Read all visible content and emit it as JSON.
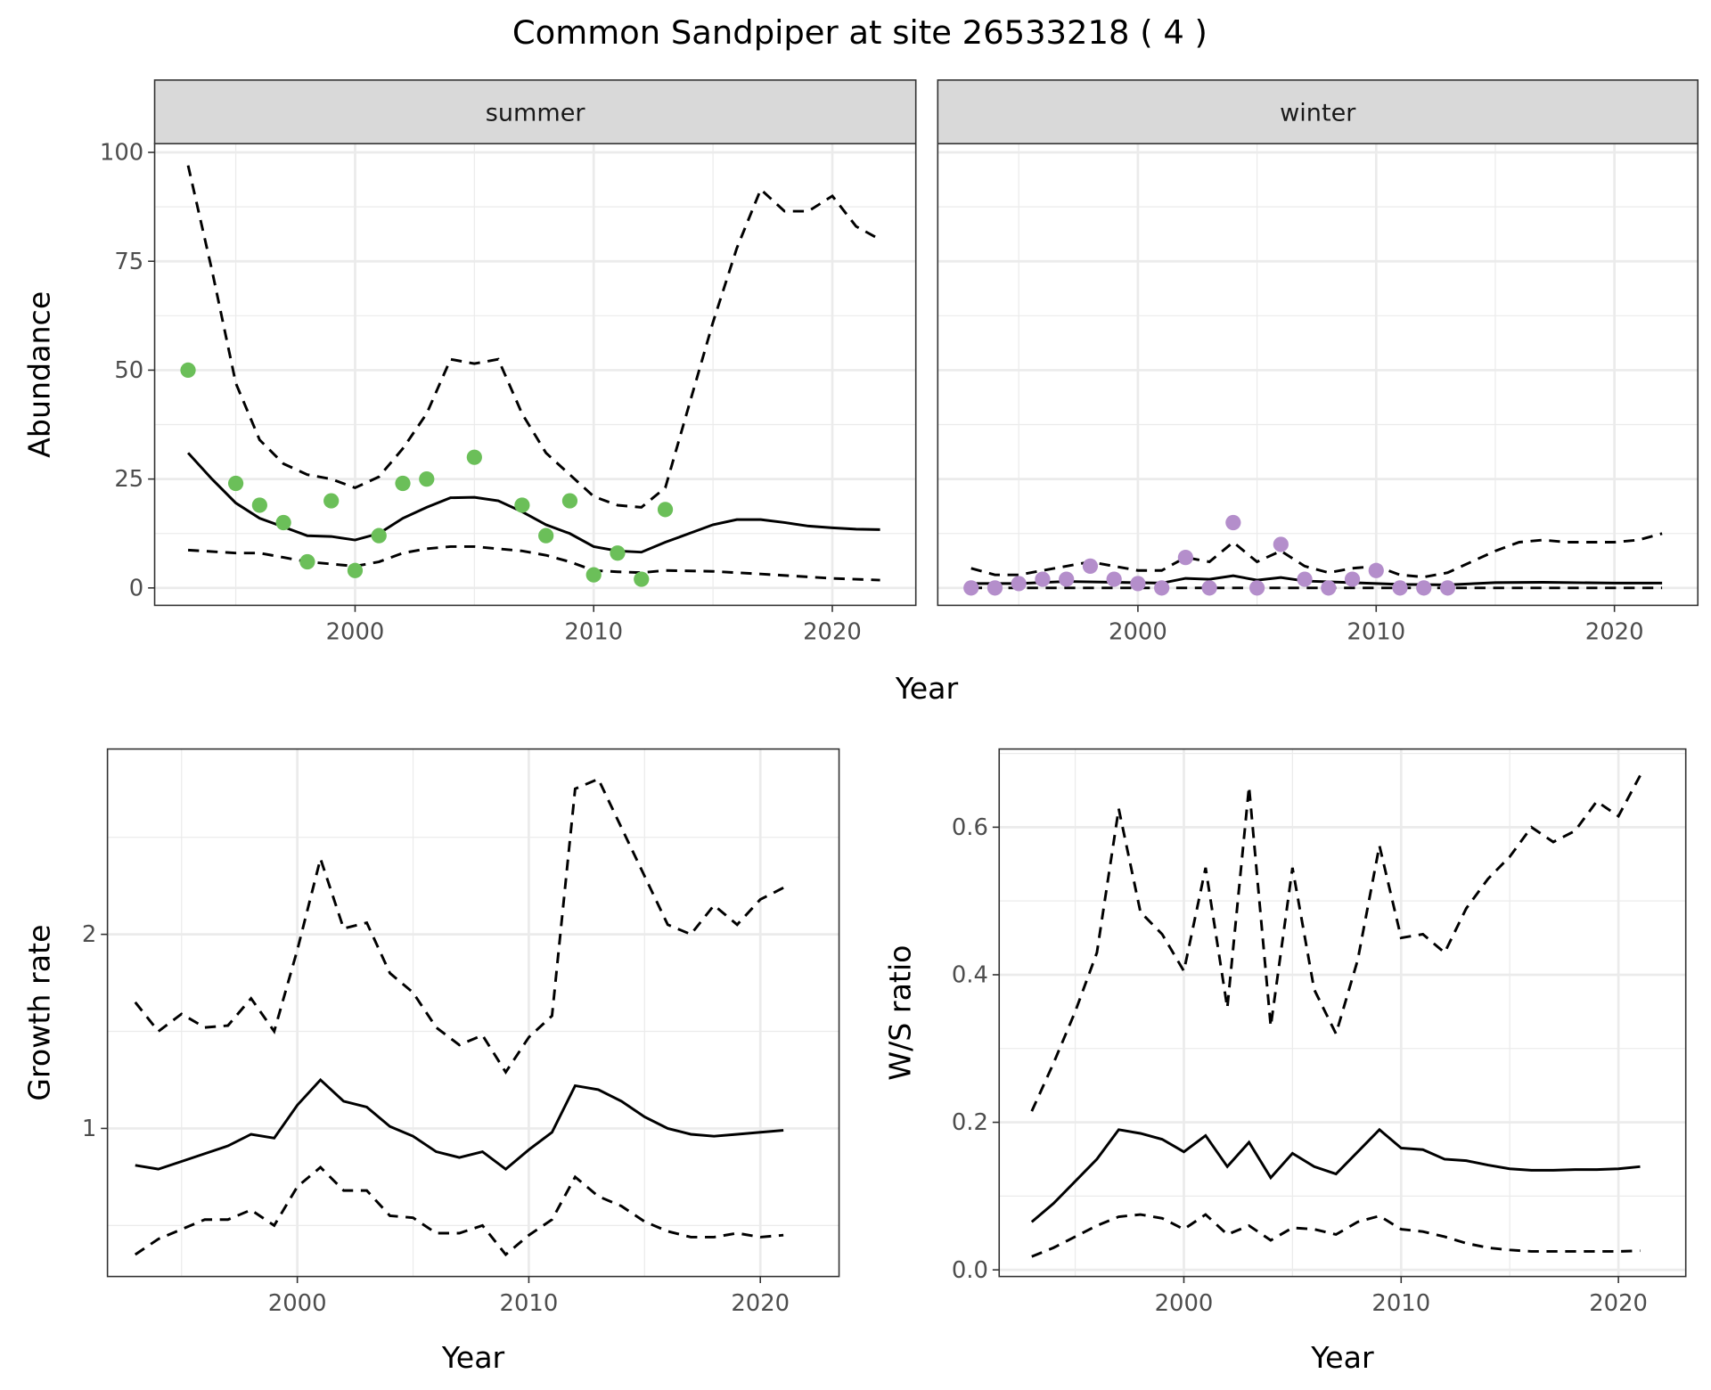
{
  "title": "Common Sandpiper at site 26533218 ( 4 )",
  "colors": {
    "summer_points": "#6BBF59",
    "winter_points": "#B48ECB",
    "lines": "#000000",
    "strip_bg": "#D9D9D9",
    "grid": "#EBEBEB"
  },
  "chart_data": [
    {
      "id": "summer",
      "type": "line+scatter",
      "facet_label": "summer",
      "xlabel": "Year",
      "ylabel": "Abundance",
      "xlim": [
        1991.6,
        2023.5
      ],
      "ylim": [
        -4,
        102
      ],
      "xticks": [
        2000,
        2010,
        2020
      ],
      "yticks": [
        0,
        25,
        50,
        75,
        100
      ],
      "grid": true,
      "points": {
        "x": [
          1993,
          1995,
          1996,
          1997,
          1998,
          1999,
          2000,
          2001,
          2002,
          2003,
          2005,
          2007,
          2008,
          2009,
          2010,
          2011,
          2012,
          2013
        ],
        "y": [
          50,
          24,
          19,
          15,
          6,
          20,
          4,
          12,
          24,
          25,
          30,
          19,
          12,
          20,
          3,
          8,
          2,
          18
        ]
      },
      "series": [
        {
          "style": "solid",
          "x": [
            1993,
            1994,
            1995,
            1996,
            1997,
            1998,
            1999,
            2000,
            2001,
            2002,
            2003,
            2004,
            2005,
            2006,
            2007,
            2008,
            2009,
            2010,
            2011,
            2012,
            2013,
            2014,
            2015,
            2016,
            2017,
            2018,
            2019,
            2020,
            2021,
            2022
          ],
          "y": [
            31,
            25,
            19.5,
            16,
            14,
            12,
            11.8,
            11,
            12.5,
            16,
            18.5,
            20.7,
            20.8,
            20,
            17.5,
            14.5,
            12.5,
            9.5,
            8.5,
            8.2,
            10.5,
            12.5,
            14.5,
            15.7,
            15.7,
            15,
            14.2,
            13.8,
            13.5,
            13.4
          ]
        },
        {
          "style": "dashed",
          "x": [
            1993,
            1994,
            1995,
            1996,
            1997,
            1998,
            1999,
            2000,
            2001,
            2002,
            2003,
            2004,
            2005,
            2006,
            2007,
            2008,
            2009,
            2010,
            2011,
            2012,
            2013,
            2014,
            2015,
            2016,
            2017,
            2018,
            2019,
            2020,
            2021,
            2022
          ],
          "y": [
            97,
            73,
            47,
            34,
            28.5,
            26,
            25,
            23,
            25.5,
            32,
            40,
            52.5,
            51.5,
            52.5,
            40,
            31,
            26,
            21,
            19,
            18.5,
            23,
            42,
            61,
            78,
            91.5,
            86.5,
            86.5,
            90,
            83,
            80
          ]
        },
        {
          "style": "dashed",
          "x": [
            1993,
            1995,
            1996,
            1997,
            1998,
            1999,
            2000,
            2001,
            2002,
            2003,
            2004,
            2005,
            2006,
            2007,
            2008,
            2009,
            2010,
            2011,
            2012,
            2013,
            2015,
            2017,
            2020,
            2022
          ],
          "y": [
            8.7,
            8,
            8,
            7,
            6,
            5.5,
            5,
            6,
            8,
            9,
            9.5,
            9.5,
            9,
            8.5,
            7.5,
            6,
            4,
            3.7,
            3.5,
            4,
            3.8,
            3.2,
            2.2,
            1.8
          ]
        }
      ]
    },
    {
      "id": "winter",
      "type": "line+scatter",
      "facet_label": "winter",
      "xlabel": "Year",
      "ylabel": "Abundance",
      "xlim": [
        1991.6,
        2023.5
      ],
      "ylim": [
        -4,
        102
      ],
      "xticks": [
        2000,
        2010,
        2020
      ],
      "yticks": [
        0,
        25,
        50,
        75,
        100
      ],
      "grid": true,
      "points": {
        "x": [
          1993,
          1994,
          1995,
          1996,
          1997,
          1998,
          1999,
          2000,
          2001,
          2002,
          2003,
          2004,
          2005,
          2006,
          2007,
          2008,
          2009,
          2010,
          2011,
          2012,
          2013
        ],
        "y": [
          0,
          0,
          1,
          2,
          2,
          5,
          2,
          1,
          0,
          7,
          0,
          15,
          0,
          10,
          2,
          0,
          2,
          4,
          0,
          0,
          0
        ]
      },
      "series": [
        {
          "style": "solid",
          "x": [
            1993,
            1995,
            1997,
            1999,
            2001,
            2002,
            2003,
            2004,
            2005,
            2006,
            2007,
            2009,
            2011,
            2013,
            2015,
            2017,
            2020,
            2022
          ],
          "y": [
            1,
            1,
            1.5,
            1.3,
            1.1,
            2.2,
            2,
            2.8,
            1.8,
            2.4,
            1.6,
            1.2,
            0.8,
            0.7,
            1.2,
            1.3,
            1.1,
            1.1
          ]
        },
        {
          "style": "dashed",
          "x": [
            1993,
            1994,
            1995,
            1996,
            1997,
            1998,
            1999,
            2000,
            2001,
            2002,
            2003,
            2004,
            2005,
            2006,
            2007,
            2008,
            2009,
            2010,
            2011,
            2012,
            2013,
            2014,
            2015,
            2016,
            2017,
            2018,
            2019,
            2020,
            2021,
            2022
          ],
          "y": [
            4.5,
            3,
            3,
            4,
            5,
            6,
            5,
            4,
            4,
            7,
            6,
            10.5,
            6,
            8.5,
            5,
            3.5,
            4.5,
            5,
            3,
            2.5,
            3.5,
            6,
            8.5,
            10.5,
            11,
            10.5,
            10.5,
            10.5,
            11,
            12.5
          ]
        },
        {
          "style": "dashed",
          "x": [
            1993,
            2022
          ],
          "y": [
            0,
            0
          ]
        }
      ]
    },
    {
      "id": "growth",
      "type": "line",
      "xlabel": "Year",
      "ylabel": "Growth rate",
      "xlim": [
        1991.8,
        2023.4
      ],
      "ylim": [
        0.237,
        2.955
      ],
      "xticks": [
        2000,
        2010,
        2020
      ],
      "yticks": [
        1,
        2
      ],
      "grid": true,
      "series": [
        {
          "style": "solid",
          "x": [
            1993,
            1994,
            1995,
            1996,
            1997,
            1998,
            1999,
            2000,
            2001,
            2002,
            2003,
            2004,
            2005,
            2006,
            2007,
            2008,
            2009,
            2010,
            2011,
            2012,
            2013,
            2014,
            2015,
            2016,
            2017,
            2018,
            2019,
            2020,
            2021
          ],
          "y": [
            0.81,
            0.79,
            0.83,
            0.87,
            0.91,
            0.97,
            0.95,
            1.12,
            1.25,
            1.14,
            1.11,
            1.01,
            0.96,
            0.88,
            0.85,
            0.88,
            0.79,
            0.89,
            0.98,
            1.22,
            1.2,
            1.14,
            1.06,
            1.0,
            0.97,
            0.96,
            0.97,
            0.98,
            0.99
          ]
        },
        {
          "style": "dashed",
          "x": [
            1993,
            1994,
            1995,
            1996,
            1997,
            1998,
            1999,
            2000,
            2001,
            2002,
            2003,
            2004,
            2005,
            2006,
            2007,
            2008,
            2009,
            2010,
            2011,
            2012,
            2013,
            2014,
            2015,
            2016,
            2017,
            2018,
            2019,
            2020,
            2021
          ],
          "y": [
            1.65,
            1.5,
            1.59,
            1.52,
            1.53,
            1.67,
            1.5,
            1.92,
            2.39,
            2.03,
            2.06,
            1.8,
            1.7,
            1.52,
            1.43,
            1.48,
            1.29,
            1.47,
            1.58,
            2.75,
            2.8,
            2.55,
            2.3,
            2.05,
            2.0,
            2.15,
            2.05,
            2.18,
            2.24
          ]
        },
        {
          "style": "dashed",
          "x": [
            1993,
            1994,
            1995,
            1996,
            1997,
            1998,
            1999,
            2000,
            2001,
            2002,
            2003,
            2004,
            2005,
            2006,
            2007,
            2008,
            2009,
            2010,
            2011,
            2012,
            2013,
            2014,
            2015,
            2016,
            2017,
            2018,
            2019,
            2020,
            2021
          ],
          "y": [
            0.35,
            0.43,
            0.48,
            0.53,
            0.53,
            0.58,
            0.5,
            0.7,
            0.8,
            0.68,
            0.68,
            0.55,
            0.54,
            0.46,
            0.46,
            0.5,
            0.35,
            0.45,
            0.53,
            0.75,
            0.65,
            0.6,
            0.52,
            0.47,
            0.44,
            0.44,
            0.46,
            0.44,
            0.45
          ]
        }
      ]
    },
    {
      "id": "ratio",
      "type": "line",
      "xlabel": "Year",
      "ylabel": "W/S ratio",
      "xlim": [
        1991.5,
        2023.1
      ],
      "ylim": [
        -0.009,
        0.706
      ],
      "xticks": [
        2000,
        2010,
        2020
      ],
      "yticks": [
        0.0,
        0.2,
        0.4,
        0.6
      ],
      "ytick_labels": [
        "0.0",
        "0.2",
        "0.4",
        "0.6"
      ],
      "grid": true,
      "series": [
        {
          "style": "solid",
          "x": [
            1993,
            1994,
            1995,
            1996,
            1997,
            1998,
            1999,
            2000,
            2001,
            2002,
            2003,
            2004,
            2005,
            2006,
            2007,
            2008,
            2009,
            2010,
            2011,
            2012,
            2013,
            2014,
            2015,
            2016,
            2017,
            2018,
            2019,
            2020,
            2021
          ],
          "y": [
            0.065,
            0.09,
            0.12,
            0.15,
            0.19,
            0.185,
            0.177,
            0.16,
            0.182,
            0.14,
            0.173,
            0.125,
            0.158,
            0.14,
            0.13,
            0.16,
            0.19,
            0.165,
            0.163,
            0.15,
            0.148,
            0.142,
            0.137,
            0.135,
            0.135,
            0.136,
            0.136,
            0.137,
            0.14
          ]
        },
        {
          "style": "dashed",
          "x": [
            1993,
            1994,
            1995,
            1996,
            1997,
            1998,
            1999,
            2000,
            2001,
            2002,
            2003,
            2004,
            2005,
            2006,
            2007,
            2008,
            2009,
            2010,
            2011,
            2012,
            2013,
            2014,
            2015,
            2016,
            2017,
            2018,
            2019,
            2020,
            2021
          ],
          "y": [
            0.215,
            0.28,
            0.35,
            0.43,
            0.625,
            0.485,
            0.455,
            0.405,
            0.545,
            0.355,
            0.655,
            0.33,
            0.545,
            0.38,
            0.32,
            0.42,
            0.575,
            0.45,
            0.455,
            0.43,
            0.49,
            0.53,
            0.56,
            0.6,
            0.58,
            0.595,
            0.635,
            0.615,
            0.67
          ]
        },
        {
          "style": "dashed",
          "x": [
            1993,
            1994,
            1995,
            1996,
            1997,
            1998,
            1999,
            2000,
            2001,
            2002,
            2003,
            2004,
            2005,
            2006,
            2007,
            2008,
            2009,
            2010,
            2011,
            2012,
            2013,
            2014,
            2015,
            2016,
            2017,
            2018,
            2019,
            2020,
            2021
          ],
          "y": [
            0.018,
            0.03,
            0.045,
            0.06,
            0.072,
            0.075,
            0.07,
            0.055,
            0.075,
            0.048,
            0.06,
            0.04,
            0.057,
            0.055,
            0.048,
            0.065,
            0.073,
            0.055,
            0.052,
            0.045,
            0.036,
            0.03,
            0.027,
            0.025,
            0.025,
            0.025,
            0.025,
            0.025,
            0.026
          ]
        }
      ]
    }
  ]
}
